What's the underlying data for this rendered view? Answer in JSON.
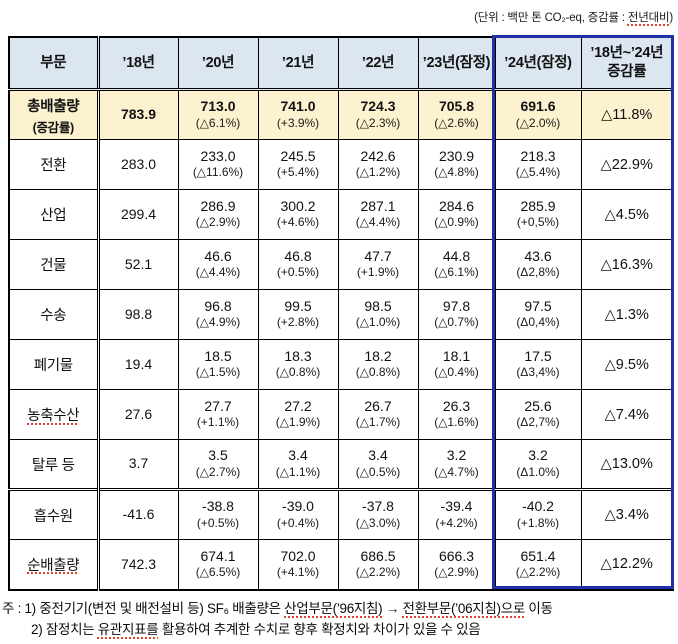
{
  "unit_note": {
    "prefix": "(단위 : 백만 톤 CO₂-eq, 증감률 : ",
    "underlined": "전년대비",
    "suffix": ")"
  },
  "table": {
    "headers": [
      "부문",
      "’18년",
      "’20년",
      "’21년",
      "’22년",
      "’23년(잠정)",
      "’24년(잠정)",
      "’18년~’24년\n증감률"
    ],
    "rows": [
      {
        "label": "총배출량",
        "label2": "(증감률)",
        "underline": false,
        "highlight": true,
        "doubleTop": false,
        "values": [
          {
            "v": "783.9"
          },
          {
            "v": "713.0",
            "p": "(△6.1%)"
          },
          {
            "v": "741.0",
            "p": "(+3.9%)"
          },
          {
            "v": "724.3",
            "p": "(△2.3%)"
          },
          {
            "v": "705.8",
            "p": "(△2.6%)"
          },
          {
            "v": "691.6",
            "p": "(△2.0%)"
          }
        ],
        "change": "△11.8%"
      },
      {
        "label": "전환",
        "underline": false,
        "highlight": false,
        "doubleTop": false,
        "values": [
          {
            "v": "283.0"
          },
          {
            "v": "233.0",
            "p": "(△11.6%)"
          },
          {
            "v": "245.5",
            "p": "(+5.4%)"
          },
          {
            "v": "242.6",
            "p": "(△1.2%)"
          },
          {
            "v": "230.9",
            "p": "(△4.8%)"
          },
          {
            "v": "218.3",
            "p": "(△5.4%)"
          }
        ],
        "change": "△22.9%"
      },
      {
        "label": "산업",
        "underline": false,
        "highlight": false,
        "doubleTop": false,
        "values": [
          {
            "v": "299.4"
          },
          {
            "v": "286.9",
            "p": "(△2.9%)"
          },
          {
            "v": "300.2",
            "p": "(+4.6%)"
          },
          {
            "v": "287.1",
            "p": "(△4.4%)"
          },
          {
            "v": "284.6",
            "p": "(△0.9%)"
          },
          {
            "v": "285.9",
            "p": "(+0,5%)"
          }
        ],
        "change": "△4.5%"
      },
      {
        "label": "건물",
        "underline": false,
        "highlight": false,
        "doubleTop": false,
        "values": [
          {
            "v": "52.1"
          },
          {
            "v": "46.6",
            "p": "(△4.4%)"
          },
          {
            "v": "46.8",
            "p": "(+0.5%)"
          },
          {
            "v": "47.7",
            "p": "(+1.9%)"
          },
          {
            "v": "44.8",
            "p": "(△6.1%)"
          },
          {
            "v": "43.6",
            "p": "(Δ2,8%)"
          }
        ],
        "change": "△16.3%"
      },
      {
        "label": "수송",
        "underline": false,
        "highlight": false,
        "doubleTop": false,
        "values": [
          {
            "v": "98.8"
          },
          {
            "v": "96.8",
            "p": "(△4.9%)"
          },
          {
            "v": "99.5",
            "p": "(+2.8%)"
          },
          {
            "v": "98.5",
            "p": "(△1.0%)"
          },
          {
            "v": "97.8",
            "p": "(△0.7%)"
          },
          {
            "v": "97.5",
            "p": "(Δ0,4%)"
          }
        ],
        "change": "△1.3%"
      },
      {
        "label": "폐기물",
        "underline": false,
        "highlight": false,
        "doubleTop": false,
        "values": [
          {
            "v": "19.4"
          },
          {
            "v": "18.5",
            "p": "(△1.5%)"
          },
          {
            "v": "18.3",
            "p": "(△0.8%)"
          },
          {
            "v": "18.2",
            "p": "(△0.8%)"
          },
          {
            "v": "18.1",
            "p": "(△0.4%)"
          },
          {
            "v": "17.5",
            "p": "(Δ3,4%)"
          }
        ],
        "change": "△9.5%"
      },
      {
        "label": "농축수산",
        "underline": true,
        "highlight": false,
        "doubleTop": false,
        "values": [
          {
            "v": "27.6"
          },
          {
            "v": "27.7",
            "p": "(+1.1%)"
          },
          {
            "v": "27.2",
            "p": "(△1.9%)"
          },
          {
            "v": "26.7",
            "p": "(△1.7%)"
          },
          {
            "v": "26.3",
            "p": "(△1.6%)"
          },
          {
            "v": "25.6",
            "p": "(Δ2,7%)"
          }
        ],
        "change": "△7.4%"
      },
      {
        "label": "탈루 등",
        "underline": false,
        "highlight": false,
        "doubleTop": false,
        "values": [
          {
            "v": "3.7"
          },
          {
            "v": "3.5",
            "p": "(△2.7%)"
          },
          {
            "v": "3.4",
            "p": "(△1.1%)"
          },
          {
            "v": "3.4",
            "p": "(△0.5%)"
          },
          {
            "v": "3.2",
            "p": "(△4.7%)"
          },
          {
            "v": "3.2",
            "p": "(Δ1.0%)"
          }
        ],
        "change": "△13.0%"
      },
      {
        "label": "흡수원",
        "underline": false,
        "highlight": false,
        "doubleTop": true,
        "values": [
          {
            "v": "-41.6"
          },
          {
            "v": "-38.8",
            "p": "(+0.5%)"
          },
          {
            "v": "-39.0",
            "p": "(+0.4%)"
          },
          {
            "v": "-37.8",
            "p": "(△3.0%)"
          },
          {
            "v": "-39.4",
            "p": "(+4.2%)"
          },
          {
            "v": "-40.2",
            "p": "(+1.8%)"
          }
        ],
        "change": "△3.4%"
      },
      {
        "label": "순배출량",
        "underline": true,
        "highlight": false,
        "doubleTop": false,
        "values": [
          {
            "v": "742.3"
          },
          {
            "v": "674.1",
            "p": "(△6.5%)"
          },
          {
            "v": "702.0",
            "p": "(+4.1%)"
          },
          {
            "v": "686.5",
            "p": "(△2.2%)"
          },
          {
            "v": "666.3",
            "p": "(△2.9%)"
          },
          {
            "v": "651.4",
            "p": "(△2.2%)"
          }
        ],
        "change": "△12.2%"
      }
    ]
  },
  "footnotes": [
    [
      {
        "t": "주 : 1) 중전기기(변전 및 배전설비 등) SF₆ 배출량은 "
      },
      {
        "t": "산업부문(’96지침)",
        "u": true
      },
      {
        "t": " → "
      },
      {
        "t": "전환부문(’06지침)으로",
        "u": true
      },
      {
        "t": " 이동"
      }
    ],
    [
      {
        "t": "2) 잠정치는 "
      },
      {
        "t": "유관지표를",
        "u": true
      },
      {
        "t": " 활용하여 추계한 수치로 향후 확정치와 차이가 있을 수 있음"
      }
    ]
  ],
  "colors": {
    "header_bg": "#dce6f1",
    "highlight_row_bg": "#fcf2cf",
    "emphasis_box_border": "#2031a5",
    "spellcheck_underline": "#d9442c"
  }
}
